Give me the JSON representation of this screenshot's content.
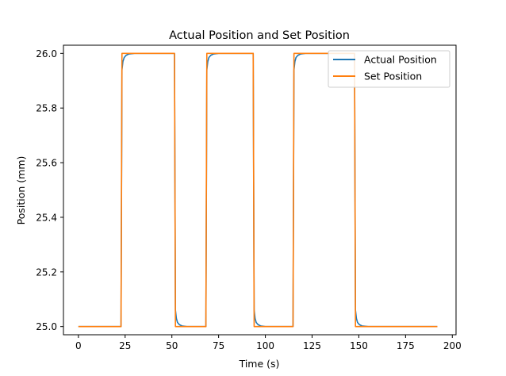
{
  "chart_data": {
    "type": "line",
    "title": "Actual Position and Set Position",
    "xlabel": "Time (s)",
    "ylabel": "Position (mm)",
    "xlim": [
      -8,
      202
    ],
    "ylim": [
      24.97,
      26.03
    ],
    "x_ticks": [
      0,
      25,
      50,
      75,
      100,
      125,
      150,
      175,
      200
    ],
    "x_tick_labels": [
      "0",
      "25",
      "50",
      "75",
      "100",
      "125",
      "150",
      "175",
      "200"
    ],
    "y_ticks": [
      25.0,
      25.2,
      25.4,
      25.6,
      25.8,
      26.0
    ],
    "y_tick_labels": [
      "25.0",
      "25.2",
      "25.4",
      "25.6",
      "25.8",
      "26.0"
    ],
    "grid": false,
    "legend_position": "top-right",
    "series": [
      {
        "name": "Actual Position",
        "color": "#1f77b4",
        "x": [
          0,
          22.8,
          23.3,
          23.8,
          24.5,
          25.5,
          27,
          30,
          51.4,
          51.9,
          52.4,
          53,
          54,
          55.5,
          58,
          68.2,
          68.7,
          69.2,
          69.8,
          70.8,
          72.3,
          75,
          93.5,
          94,
          94.5,
          95.1,
          96.1,
          97.6,
          100,
          114.8,
          115.3,
          115.8,
          116.4,
          117.4,
          118.9,
          121.5,
          147.7,
          148.2,
          148.7,
          149.3,
          150.3,
          151.8,
          155,
          192
        ],
        "y": [
          25.0,
          25.0,
          25.94,
          25.97,
          25.985,
          25.993,
          25.998,
          26.0,
          26.0,
          25.06,
          25.03,
          25.015,
          25.007,
          25.002,
          25.0,
          25.0,
          25.94,
          25.97,
          25.985,
          25.993,
          25.998,
          26.0,
          26.0,
          25.06,
          25.03,
          25.015,
          25.007,
          25.002,
          25.0,
          25.0,
          25.94,
          25.97,
          25.985,
          25.993,
          25.998,
          26.0,
          26.0,
          25.06,
          25.03,
          25.015,
          25.007,
          25.002,
          25.0,
          25.0
        ]
      },
      {
        "name": "Set Position",
        "color": "#ff7f0e",
        "x": [
          0,
          22.8,
          23.3,
          51.4,
          51.9,
          68.2,
          68.7,
          93.5,
          94.0,
          114.8,
          115.3,
          147.7,
          148.2,
          192
        ],
        "y": [
          25.0,
          25.0,
          26.0,
          26.0,
          25.0,
          25.0,
          26.0,
          26.0,
          25.0,
          25.0,
          26.0,
          26.0,
          25.0,
          25.0
        ]
      }
    ]
  }
}
